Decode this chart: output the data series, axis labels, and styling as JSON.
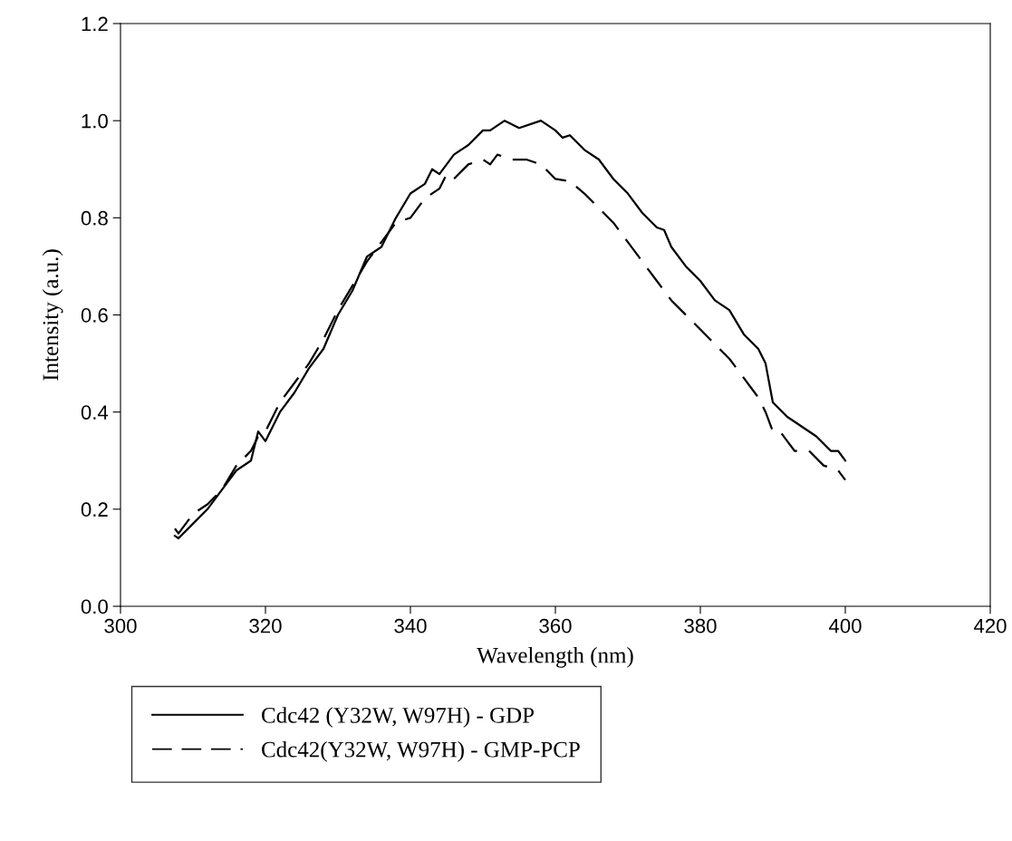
{
  "chart_data": {
    "type": "line",
    "xlabel": "Wavelength (nm)",
    "ylabel": "Intensity (a.u.)",
    "xlim": [
      300,
      420
    ],
    "xticks": [
      300,
      320,
      340,
      360,
      380,
      400,
      420
    ],
    "ylim": [
      0,
      1.2
    ],
    "yticks": [
      {
        "value": 0,
        "label": "0.0"
      },
      {
        "value": 0.2,
        "label": "0.2"
      },
      {
        "value": 0.4,
        "label": "0.4"
      },
      {
        "value": 0.6,
        "label": "0.6"
      },
      {
        "value": 0.8,
        "label": "0.8"
      },
      {
        "value": 1.0,
        "label": "1.0"
      },
      {
        "value": 1.2,
        "label": "1.2"
      }
    ],
    "grid": false,
    "legend": "bottom",
    "series": [
      {
        "name": "Cdc42 (Y32W, W97H) - GDP",
        "color": "#000000",
        "line_style": "solid",
        "x": [
          307.5,
          308,
          310,
          312,
          314,
          316,
          318,
          319,
          320,
          322,
          324,
          326,
          328,
          330,
          332,
          334,
          336,
          338,
          340,
          342,
          343,
          344,
          346,
          348,
          350,
          351,
          353,
          355,
          358,
          360,
          361,
          362,
          364,
          366,
          368,
          370,
          372,
          374,
          375,
          376,
          378,
          380,
          382,
          384,
          386,
          388,
          389,
          390,
          392,
          394,
          396,
          398,
          399,
          400
        ],
        "values": [
          0.145,
          0.14,
          0.17,
          0.2,
          0.24,
          0.28,
          0.3,
          0.36,
          0.34,
          0.4,
          0.44,
          0.49,
          0.53,
          0.6,
          0.65,
          0.72,
          0.74,
          0.8,
          0.85,
          0.87,
          0.9,
          0.89,
          0.93,
          0.95,
          0.98,
          0.98,
          1.0,
          0.985,
          1.0,
          0.98,
          0.965,
          0.97,
          0.94,
          0.92,
          0.88,
          0.85,
          0.81,
          0.78,
          0.775,
          0.74,
          0.7,
          0.67,
          0.63,
          0.61,
          0.56,
          0.53,
          0.5,
          0.42,
          0.39,
          0.37,
          0.35,
          0.32,
          0.32,
          0.3
        ]
      },
      {
        "name": "Cdc42(Y32W, W97H) - GMP-PCP",
        "color": "#000000",
        "line_style": "dashed",
        "x": [
          307.5,
          308,
          310,
          312,
          314,
          316,
          318,
          319,
          320,
          322,
          324,
          326,
          328,
          330,
          332,
          334,
          336,
          338,
          340,
          342,
          344,
          345,
          346,
          348,
          350,
          351,
          352,
          354,
          356,
          358,
          360,
          362,
          364,
          366,
          368,
          370,
          372,
          374,
          376,
          378,
          380,
          382,
          384,
          386,
          388,
          389,
          390,
          391,
          392,
          393,
          395,
          397,
          399,
          400
        ],
        "values": [
          0.16,
          0.15,
          0.19,
          0.21,
          0.24,
          0.29,
          0.32,
          0.35,
          0.36,
          0.42,
          0.46,
          0.5,
          0.55,
          0.61,
          0.66,
          0.71,
          0.75,
          0.79,
          0.8,
          0.84,
          0.86,
          0.89,
          0.88,
          0.91,
          0.92,
          0.91,
          0.93,
          0.92,
          0.92,
          0.91,
          0.88,
          0.875,
          0.85,
          0.82,
          0.79,
          0.75,
          0.71,
          0.67,
          0.63,
          0.6,
          0.57,
          0.54,
          0.51,
          0.47,
          0.43,
          0.4,
          0.36,
          0.36,
          0.34,
          0.32,
          0.32,
          0.29,
          0.28,
          0.26
        ]
      }
    ]
  }
}
